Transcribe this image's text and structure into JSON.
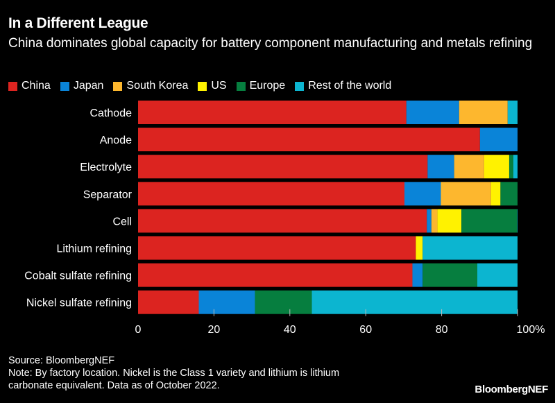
{
  "title": "In a Different League",
  "subtitle": "China dominates global capacity for battery component manufacturing and metals refining",
  "source": "Source: BloombergNEF",
  "note": "Note: By factory location. Nickel is the Class 1 variety and lithium is lithium carbonate equivalent. Data as of October 2022.",
  "logo": "BloombergNEF",
  "chart_data": {
    "type": "bar",
    "orientation": "horizontal",
    "stacked": true,
    "categories": [
      "Cathode",
      "Anode",
      "Electrolyte",
      "Separator",
      "Cell",
      "Lithium refining",
      "Cobalt sulfate refining",
      "Nickel sulfate refining"
    ],
    "series": [
      {
        "name": "China",
        "color": "#dc2420",
        "values": [
          70.7,
          90.1,
          76.3,
          70.2,
          76.1,
          73.2,
          72.3,
          16.0
        ]
      },
      {
        "name": "Japan",
        "color": "#0a84d8",
        "values": [
          13.9,
          9.9,
          7.0,
          9.6,
          1.2,
          0,
          2.7,
          14.8
        ]
      },
      {
        "name": "South Korea",
        "color": "#fdb72e",
        "values": [
          12.8,
          0,
          7.9,
          13.2,
          1.6,
          0,
          0,
          0
        ]
      },
      {
        "name": "US",
        "color": "#fff200",
        "values": [
          0,
          0,
          6.6,
          2.5,
          6.3,
          1.8,
          0,
          0
        ]
      },
      {
        "name": "Europe",
        "color": "#067e3f",
        "values": [
          0,
          0,
          1.1,
          4.5,
          14.7,
          0,
          14.4,
          15.0
        ]
      },
      {
        "name": "Rest of the world",
        "color": "#0cb5d0",
        "values": [
          2.6,
          0,
          1.1,
          0,
          0.1,
          25.0,
          10.6,
          54.2
        ]
      }
    ],
    "xticks": [
      "0",
      "20",
      "40",
      "60",
      "80",
      "100%"
    ],
    "xlim": [
      0,
      100
    ],
    "grid": false,
    "legend_position": "top-left"
  }
}
